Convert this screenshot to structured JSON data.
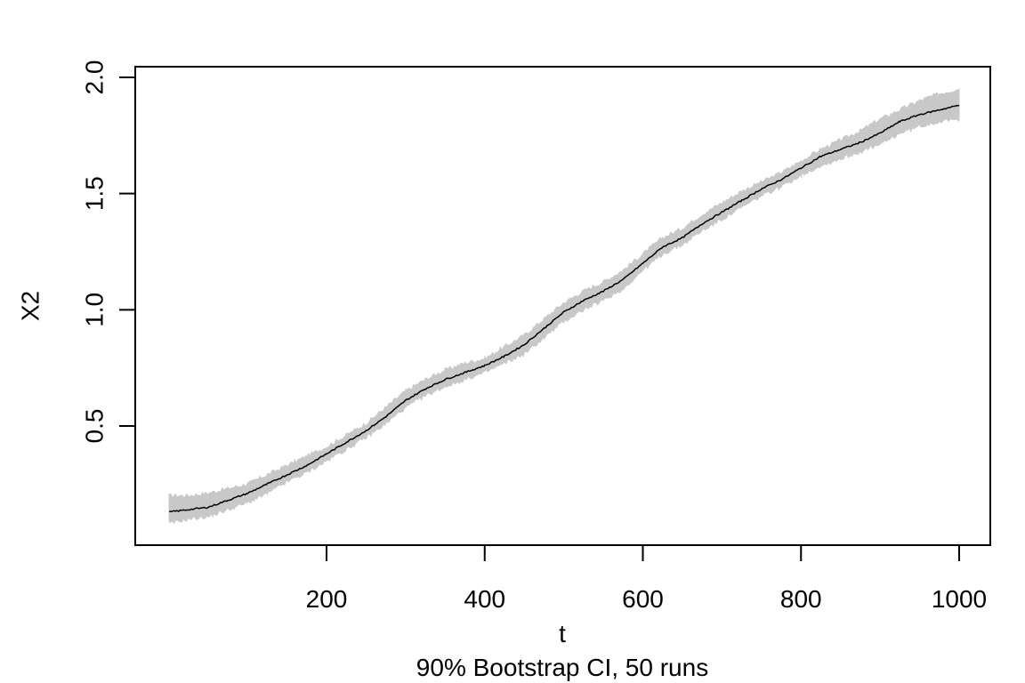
{
  "chart_data": {
    "type": "line",
    "xlabel": "t",
    "ylabel": "X2",
    "subtitle": "90% Bootstrap CI, 50 runs",
    "xlim": [
      1,
      1000
    ],
    "ylim": [
      0.0,
      2.0
    ],
    "xticks": [
      200,
      400,
      600,
      800,
      1000
    ],
    "yticks": [
      0.5,
      1.0,
      1.5,
      2.0
    ],
    "grid": false,
    "colors": {
      "line": "#000000",
      "band": "#c8c8c8",
      "axis": "#000000"
    },
    "series": [
      {
        "role": "estimate",
        "x": [
          1,
          25,
          50,
          75,
          100,
          125,
          150,
          175,
          200,
          225,
          250,
          275,
          300,
          325,
          350,
          375,
          400,
          425,
          450,
          475,
          500,
          525,
          550,
          575,
          600,
          625,
          650,
          675,
          700,
          725,
          750,
          775,
          800,
          825,
          850,
          875,
          900,
          925,
          950,
          975,
          1000
        ],
        "y": [
          0.13,
          0.14,
          0.15,
          0.18,
          0.21,
          0.25,
          0.29,
          0.33,
          0.38,
          0.43,
          0.48,
          0.54,
          0.61,
          0.66,
          0.7,
          0.73,
          0.76,
          0.8,
          0.85,
          0.92,
          0.99,
          1.04,
          1.08,
          1.13,
          1.2,
          1.27,
          1.31,
          1.37,
          1.42,
          1.47,
          1.52,
          1.56,
          1.61,
          1.66,
          1.69,
          1.72,
          1.76,
          1.81,
          1.84,
          1.86,
          1.88
        ]
      },
      {
        "role": "ci-lower",
        "x": [
          1,
          25,
          50,
          75,
          100,
          125,
          150,
          175,
          200,
          225,
          250,
          275,
          300,
          325,
          350,
          375,
          400,
          425,
          450,
          475,
          500,
          525,
          550,
          575,
          600,
          625,
          650,
          675,
          700,
          725,
          750,
          775,
          800,
          825,
          850,
          875,
          900,
          925,
          950,
          975,
          1000
        ],
        "y": [
          0.08,
          0.1,
          0.11,
          0.14,
          0.17,
          0.21,
          0.26,
          0.3,
          0.35,
          0.4,
          0.45,
          0.51,
          0.58,
          0.63,
          0.67,
          0.7,
          0.73,
          0.77,
          0.81,
          0.88,
          0.95,
          1.0,
          1.04,
          1.09,
          1.17,
          1.24,
          1.28,
          1.34,
          1.39,
          1.44,
          1.49,
          1.53,
          1.58,
          1.62,
          1.65,
          1.68,
          1.71,
          1.76,
          1.79,
          1.81,
          1.82
        ]
      },
      {
        "role": "ci-upper",
        "x": [
          1,
          25,
          50,
          75,
          100,
          125,
          150,
          175,
          200,
          225,
          250,
          275,
          300,
          325,
          350,
          375,
          400,
          425,
          450,
          475,
          500,
          525,
          550,
          575,
          600,
          625,
          650,
          675,
          700,
          725,
          750,
          775,
          800,
          825,
          850,
          875,
          900,
          925,
          950,
          975,
          1000
        ],
        "y": [
          0.2,
          0.2,
          0.21,
          0.23,
          0.25,
          0.29,
          0.33,
          0.37,
          0.41,
          0.46,
          0.51,
          0.58,
          0.65,
          0.7,
          0.74,
          0.77,
          0.79,
          0.84,
          0.89,
          0.96,
          1.03,
          1.08,
          1.12,
          1.17,
          1.24,
          1.31,
          1.35,
          1.41,
          1.46,
          1.51,
          1.55,
          1.59,
          1.64,
          1.69,
          1.73,
          1.77,
          1.82,
          1.86,
          1.9,
          1.93,
          1.95
        ]
      }
    ]
  }
}
